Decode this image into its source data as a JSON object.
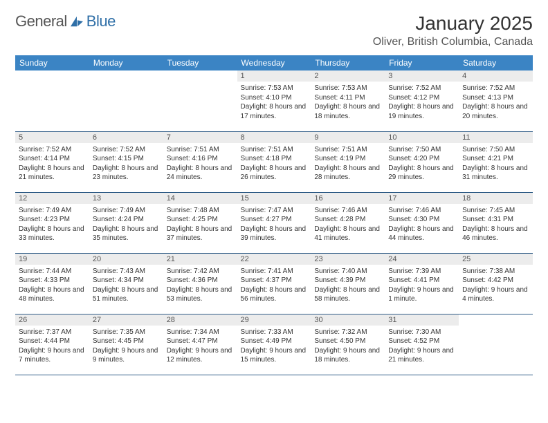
{
  "brand": {
    "part1": "General",
    "part2": "Blue"
  },
  "title": "January 2025",
  "location": "Oliver, British Columbia, Canada",
  "colors": {
    "header_bg": "#3b84c4",
    "header_text": "#ffffff",
    "daynum_bg": "#ececec",
    "cell_border": "#2d5a85",
    "brand_blue": "#2f6fa7"
  },
  "dow": [
    "Sunday",
    "Monday",
    "Tuesday",
    "Wednesday",
    "Thursday",
    "Friday",
    "Saturday"
  ],
  "weeks": [
    [
      null,
      null,
      null,
      {
        "d": "1",
        "sr": "7:53 AM",
        "ss": "4:10 PM",
        "dl": "8 hours and 17 minutes."
      },
      {
        "d": "2",
        "sr": "7:53 AM",
        "ss": "4:11 PM",
        "dl": "8 hours and 18 minutes."
      },
      {
        "d": "3",
        "sr": "7:52 AM",
        "ss": "4:12 PM",
        "dl": "8 hours and 19 minutes."
      },
      {
        "d": "4",
        "sr": "7:52 AM",
        "ss": "4:13 PM",
        "dl": "8 hours and 20 minutes."
      }
    ],
    [
      {
        "d": "5",
        "sr": "7:52 AM",
        "ss": "4:14 PM",
        "dl": "8 hours and 21 minutes."
      },
      {
        "d": "6",
        "sr": "7:52 AM",
        "ss": "4:15 PM",
        "dl": "8 hours and 23 minutes."
      },
      {
        "d": "7",
        "sr": "7:51 AM",
        "ss": "4:16 PM",
        "dl": "8 hours and 24 minutes."
      },
      {
        "d": "8",
        "sr": "7:51 AM",
        "ss": "4:18 PM",
        "dl": "8 hours and 26 minutes."
      },
      {
        "d": "9",
        "sr": "7:51 AM",
        "ss": "4:19 PM",
        "dl": "8 hours and 28 minutes."
      },
      {
        "d": "10",
        "sr": "7:50 AM",
        "ss": "4:20 PM",
        "dl": "8 hours and 29 minutes."
      },
      {
        "d": "11",
        "sr": "7:50 AM",
        "ss": "4:21 PM",
        "dl": "8 hours and 31 minutes."
      }
    ],
    [
      {
        "d": "12",
        "sr": "7:49 AM",
        "ss": "4:23 PM",
        "dl": "8 hours and 33 minutes."
      },
      {
        "d": "13",
        "sr": "7:49 AM",
        "ss": "4:24 PM",
        "dl": "8 hours and 35 minutes."
      },
      {
        "d": "14",
        "sr": "7:48 AM",
        "ss": "4:25 PM",
        "dl": "8 hours and 37 minutes."
      },
      {
        "d": "15",
        "sr": "7:47 AM",
        "ss": "4:27 PM",
        "dl": "8 hours and 39 minutes."
      },
      {
        "d": "16",
        "sr": "7:46 AM",
        "ss": "4:28 PM",
        "dl": "8 hours and 41 minutes."
      },
      {
        "d": "17",
        "sr": "7:46 AM",
        "ss": "4:30 PM",
        "dl": "8 hours and 44 minutes."
      },
      {
        "d": "18",
        "sr": "7:45 AM",
        "ss": "4:31 PM",
        "dl": "8 hours and 46 minutes."
      }
    ],
    [
      {
        "d": "19",
        "sr": "7:44 AM",
        "ss": "4:33 PM",
        "dl": "8 hours and 48 minutes."
      },
      {
        "d": "20",
        "sr": "7:43 AM",
        "ss": "4:34 PM",
        "dl": "8 hours and 51 minutes."
      },
      {
        "d": "21",
        "sr": "7:42 AM",
        "ss": "4:36 PM",
        "dl": "8 hours and 53 minutes."
      },
      {
        "d": "22",
        "sr": "7:41 AM",
        "ss": "4:37 PM",
        "dl": "8 hours and 56 minutes."
      },
      {
        "d": "23",
        "sr": "7:40 AM",
        "ss": "4:39 PM",
        "dl": "8 hours and 58 minutes."
      },
      {
        "d": "24",
        "sr": "7:39 AM",
        "ss": "4:41 PM",
        "dl": "9 hours and 1 minute."
      },
      {
        "d": "25",
        "sr": "7:38 AM",
        "ss": "4:42 PM",
        "dl": "9 hours and 4 minutes."
      }
    ],
    [
      {
        "d": "26",
        "sr": "7:37 AM",
        "ss": "4:44 PM",
        "dl": "9 hours and 7 minutes."
      },
      {
        "d": "27",
        "sr": "7:35 AM",
        "ss": "4:45 PM",
        "dl": "9 hours and 9 minutes."
      },
      {
        "d": "28",
        "sr": "7:34 AM",
        "ss": "4:47 PM",
        "dl": "9 hours and 12 minutes."
      },
      {
        "d": "29",
        "sr": "7:33 AM",
        "ss": "4:49 PM",
        "dl": "9 hours and 15 minutes."
      },
      {
        "d": "30",
        "sr": "7:32 AM",
        "ss": "4:50 PM",
        "dl": "9 hours and 18 minutes."
      },
      {
        "d": "31",
        "sr": "7:30 AM",
        "ss": "4:52 PM",
        "dl": "9 hours and 21 minutes."
      },
      null
    ]
  ],
  "labels": {
    "sunrise": "Sunrise:",
    "sunset": "Sunset:",
    "daylight": "Daylight:"
  }
}
